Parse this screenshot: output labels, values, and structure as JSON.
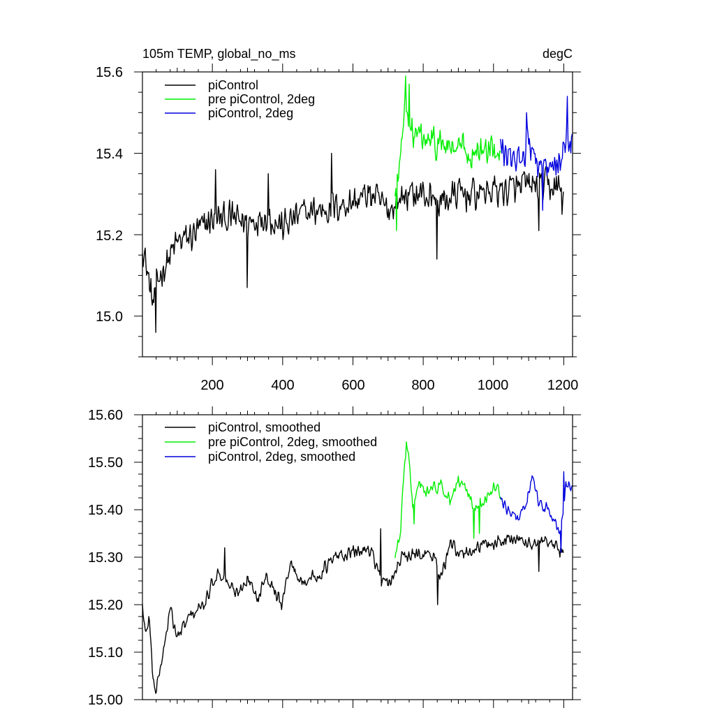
{
  "chart_data": [
    {
      "type": "line",
      "title_left": "105m TEMP, global_no_ms",
      "title_right": "degC",
      "xlim": [
        1,
        1225
      ],
      "ylim": [
        14.9,
        15.6
      ],
      "xticks": [
        200,
        400,
        600,
        800,
        1000,
        1200
      ],
      "xtick_labels": [
        "200",
        "400",
        "600",
        "800",
        "1000",
        "1200"
      ],
      "yticks": [
        15.0,
        15.2,
        15.4,
        15.6
      ],
      "ytick_labels": [
        "15.0",
        "15.2",
        "15.4",
        "15.6"
      ],
      "legend": {
        "placement": "top-left",
        "entries": [
          "piControl",
          "pre piControl, 2deg",
          "piControl, 2deg"
        ]
      },
      "series": [
        {
          "name": "piControl",
          "color": "#000000",
          "x_start": 1,
          "x_end": 1200,
          "anchors": [
            [
              1,
              15.18
            ],
            [
              30,
              15.03
            ],
            [
              50,
              15.1
            ],
            [
              100,
              15.18
            ],
            [
              150,
              15.2
            ],
            [
              200,
              15.24
            ],
            [
              260,
              15.24
            ],
            [
              300,
              15.23
            ],
            [
              350,
              15.25
            ],
            [
              400,
              15.22
            ],
            [
              450,
              15.25
            ],
            [
              500,
              15.26
            ],
            [
              550,
              15.27
            ],
            [
              600,
              15.28
            ],
            [
              650,
              15.3
            ],
            [
              700,
              15.26
            ],
            [
              750,
              15.3
            ],
            [
              800,
              15.3
            ],
            [
              850,
              15.28
            ],
            [
              900,
              15.3
            ],
            [
              950,
              15.3
            ],
            [
              1000,
              15.31
            ],
            [
              1050,
              15.31
            ],
            [
              1100,
              15.32
            ],
            [
              1150,
              15.32
            ],
            [
              1200,
              15.31
            ]
          ],
          "noise": 0.05,
          "spikes": [
            [
              40,
              14.96
            ],
            [
              300,
              15.07
            ],
            [
              840,
              15.14
            ],
            [
              1130,
              15.21
            ],
            [
              1195,
              15.25
            ],
            [
              540,
              15.4
            ],
            [
              210,
              15.36
            ],
            [
              360,
              15.35
            ]
          ]
        },
        {
          "name": "pre piControl, 2deg",
          "color": "#00ee00",
          "x_start": 720,
          "x_end": 1020,
          "anchors": [
            [
              720,
              15.3
            ],
            [
              735,
              15.38
            ],
            [
              750,
              15.52
            ],
            [
              770,
              15.45
            ],
            [
              800,
              15.43
            ],
            [
              850,
              15.42
            ],
            [
              900,
              15.41
            ],
            [
              950,
              15.4
            ],
            [
              1000,
              15.41
            ],
            [
              1020,
              15.42
            ]
          ],
          "noise": 0.05,
          "spikes": [
            [
              725,
              15.21
            ],
            [
              750,
              15.59
            ],
            [
              760,
              15.57
            ]
          ]
        },
        {
          "name": "piControl, 2deg",
          "color": "#0000dd",
          "x_start": 1020,
          "x_end": 1225,
          "anchors": [
            [
              1020,
              15.42
            ],
            [
              1050,
              15.37
            ],
            [
              1080,
              15.4
            ],
            [
              1100,
              15.43
            ],
            [
              1120,
              15.39
            ],
            [
              1150,
              15.35
            ],
            [
              1180,
              15.37
            ],
            [
              1200,
              15.42
            ],
            [
              1225,
              15.43
            ]
          ],
          "noise": 0.05,
          "spikes": [
            [
              1140,
              15.26
            ],
            [
              1210,
              15.54
            ],
            [
              1095,
              15.5
            ]
          ]
        }
      ]
    },
    {
      "type": "line",
      "xlim": [
        1,
        1225
      ],
      "ylim": [
        15.0,
        15.6
      ],
      "xticks": [
        200,
        400,
        600,
        800,
        1000,
        1200
      ],
      "yticks": [
        15.0,
        15.1,
        15.2,
        15.3,
        15.4,
        15.5,
        15.6
      ],
      "ytick_labels": [
        "15.00",
        "15.10",
        "15.20",
        "15.30",
        "15.40",
        "15.50",
        "15.60"
      ],
      "legend": {
        "placement": "top-left",
        "entries": [
          "piControl, smoothed",
          "pre piControl, 2deg, smoothed",
          "piControl, 2deg, smoothed"
        ]
      },
      "series": [
        {
          "name": "piControl, smoothed",
          "color": "#000000",
          "x_start": 1,
          "x_end": 1200,
          "anchors": [
            [
              1,
              15.2
            ],
            [
              10,
              15.13
            ],
            [
              20,
              15.18
            ],
            [
              30,
              15.05
            ],
            [
              40,
              15.02
            ],
            [
              60,
              15.1
            ],
            [
              80,
              15.19
            ],
            [
              100,
              15.13
            ],
            [
              140,
              15.18
            ],
            [
              180,
              15.2
            ],
            [
              200,
              15.25
            ],
            [
              220,
              15.27
            ],
            [
              250,
              15.24
            ],
            [
              270,
              15.22
            ],
            [
              300,
              15.26
            ],
            [
              330,
              15.21
            ],
            [
              350,
              15.27
            ],
            [
              400,
              15.2
            ],
            [
              420,
              15.29
            ],
            [
              450,
              15.25
            ],
            [
              500,
              15.26
            ],
            [
              550,
              15.3
            ],
            [
              600,
              15.31
            ],
            [
              650,
              15.32
            ],
            [
              680,
              15.25
            ],
            [
              700,
              15.24
            ],
            [
              720,
              15.27
            ],
            [
              740,
              15.3
            ],
            [
              760,
              15.3
            ],
            [
              800,
              15.31
            ],
            [
              830,
              15.3
            ],
            [
              850,
              15.26
            ],
            [
              880,
              15.33
            ],
            [
              900,
              15.3
            ],
            [
              950,
              15.32
            ],
            [
              1000,
              15.33
            ],
            [
              1050,
              15.34
            ],
            [
              1100,
              15.33
            ],
            [
              1150,
              15.33
            ],
            [
              1200,
              15.31
            ]
          ],
          "noise": 0.018,
          "spikes": [
            [
              842,
              15.2
            ],
            [
              1130,
              15.27
            ],
            [
              235,
              15.32
            ],
            [
              680,
              15.36
            ],
            [
              1190,
              15.3
            ]
          ]
        },
        {
          "name": "pre piControl, 2deg, smoothed",
          "color": "#00ee00",
          "x_start": 720,
          "x_end": 1020,
          "anchors": [
            [
              720,
              15.29
            ],
            [
              735,
              15.35
            ],
            [
              745,
              15.48
            ],
            [
              752,
              15.54
            ],
            [
              760,
              15.5
            ],
            [
              770,
              15.4
            ],
            [
              790,
              15.45
            ],
            [
              820,
              15.44
            ],
            [
              850,
              15.45
            ],
            [
              880,
              15.42
            ],
            [
              900,
              15.46
            ],
            [
              930,
              15.44
            ],
            [
              950,
              15.4
            ],
            [
              970,
              15.42
            ],
            [
              1000,
              15.45
            ],
            [
              1020,
              15.43
            ]
          ],
          "noise": 0.018,
          "spikes": [
            [
              775,
              15.37
            ],
            [
              945,
              15.34
            ],
            [
              960,
              15.35
            ]
          ]
        },
        {
          "name": "piControl, 2deg, smoothed",
          "color": "#0000dd",
          "x_start": 1020,
          "x_end": 1225,
          "anchors": [
            [
              1020,
              15.43
            ],
            [
              1040,
              15.4
            ],
            [
              1060,
              15.38
            ],
            [
              1080,
              15.39
            ],
            [
              1100,
              15.44
            ],
            [
              1110,
              15.47
            ],
            [
              1130,
              15.41
            ],
            [
              1150,
              15.4
            ],
            [
              1170,
              15.38
            ],
            [
              1190,
              15.35
            ],
            [
              1205,
              15.45
            ],
            [
              1215,
              15.46
            ],
            [
              1225,
              15.44
            ]
          ],
          "noise": 0.016,
          "spikes": [
            [
              1192,
              15.31
            ],
            [
              1200,
              15.48
            ]
          ]
        }
      ]
    }
  ]
}
